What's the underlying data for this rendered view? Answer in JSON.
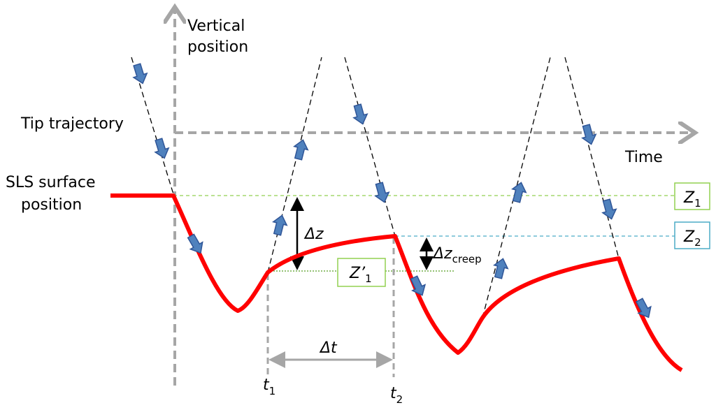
{
  "labels": {
    "vertical_axis": [
      "Vertical",
      "position"
    ],
    "tip_trajectory": "Tip trajectory",
    "sls_surface": [
      "SLS surface",
      "position"
    ],
    "time": "Time"
  },
  "boxes": {
    "z1": {
      "symbol": "Z",
      "sub": "1"
    },
    "z2": {
      "symbol": "Z",
      "sub": "2"
    },
    "z1_prime": {
      "symbol": "Z’",
      "sub": "1"
    }
  },
  "annotations": {
    "delta_z": "Δz",
    "delta_z_creep": {
      "symbol": "Δz",
      "sub": "creep"
    },
    "delta_t": "Δt",
    "t1": {
      "symbol": "t",
      "sub": "1"
    },
    "t2": {
      "symbol": "t",
      "sub": "2"
    }
  }
}
